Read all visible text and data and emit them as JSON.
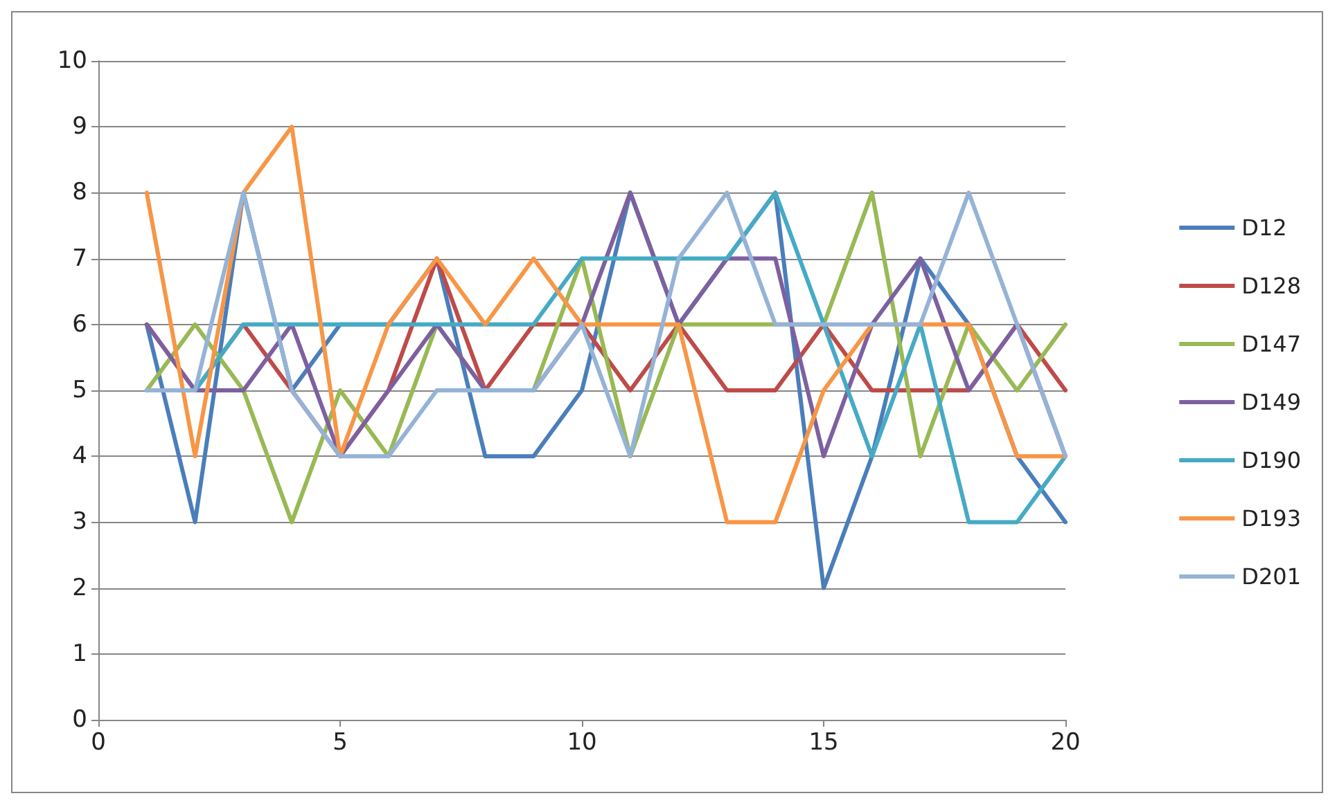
{
  "chart_data": {
    "type": "line",
    "x": [
      1,
      2,
      3,
      4,
      5,
      6,
      7,
      8,
      9,
      10,
      11,
      12,
      13,
      14,
      15,
      16,
      17,
      18,
      19,
      20
    ],
    "xlim": [
      0,
      20
    ],
    "xticks": [
      0,
      5,
      10,
      15,
      20
    ],
    "ylim": [
      0,
      10
    ],
    "yticks": [
      0,
      1,
      2,
      3,
      4,
      5,
      6,
      7,
      8,
      9,
      10
    ],
    "grid": "y",
    "legend": "right",
    "marker": "none",
    "line_style": "solid",
    "series": [
      {
        "name": "D12",
        "color": "#4a7ebb",
        "values": [
          6,
          3,
          8,
          5,
          6,
          6,
          7,
          4,
          4,
          5,
          8,
          6,
          7,
          8,
          2,
          4,
          7,
          6,
          4,
          3
        ]
      },
      {
        "name": "D128",
        "color": "#be4b48",
        "values": [
          6,
          5,
          6,
          5,
          4,
          5,
          7,
          5,
          6,
          6,
          5,
          6,
          5,
          5,
          6,
          5,
          5,
          5,
          6,
          5
        ]
      },
      {
        "name": "D147",
        "color": "#98b954",
        "values": [
          5,
          6,
          5,
          3,
          5,
          4,
          6,
          5,
          5,
          7,
          4,
          6,
          6,
          6,
          6,
          8,
          4,
          6,
          5,
          6
        ]
      },
      {
        "name": "D149",
        "color": "#7d60a0",
        "values": [
          6,
          5,
          5,
          6,
          4,
          5,
          6,
          5,
          5,
          6,
          8,
          6,
          7,
          7,
          4,
          6,
          7,
          5,
          6,
          4
        ]
      },
      {
        "name": "D190",
        "color": "#46aac5",
        "values": [
          5,
          5,
          6,
          6,
          6,
          6,
          6,
          6,
          6,
          7,
          7,
          7,
          7,
          8,
          6,
          4,
          6,
          3,
          3,
          4
        ]
      },
      {
        "name": "D193",
        "color": "#f79646",
        "values": [
          8,
          4,
          8,
          9,
          4,
          6,
          7,
          6,
          7,
          6,
          6,
          6,
          3,
          3,
          5,
          6,
          6,
          6,
          4,
          4
        ]
      },
      {
        "name": "D201",
        "color": "#95b3d7",
        "values": [
          5,
          5,
          8,
          5,
          4,
          4,
          5,
          5,
          5,
          6,
          4,
          7,
          8,
          6,
          6,
          6,
          6,
          8,
          6,
          4
        ]
      }
    ]
  }
}
